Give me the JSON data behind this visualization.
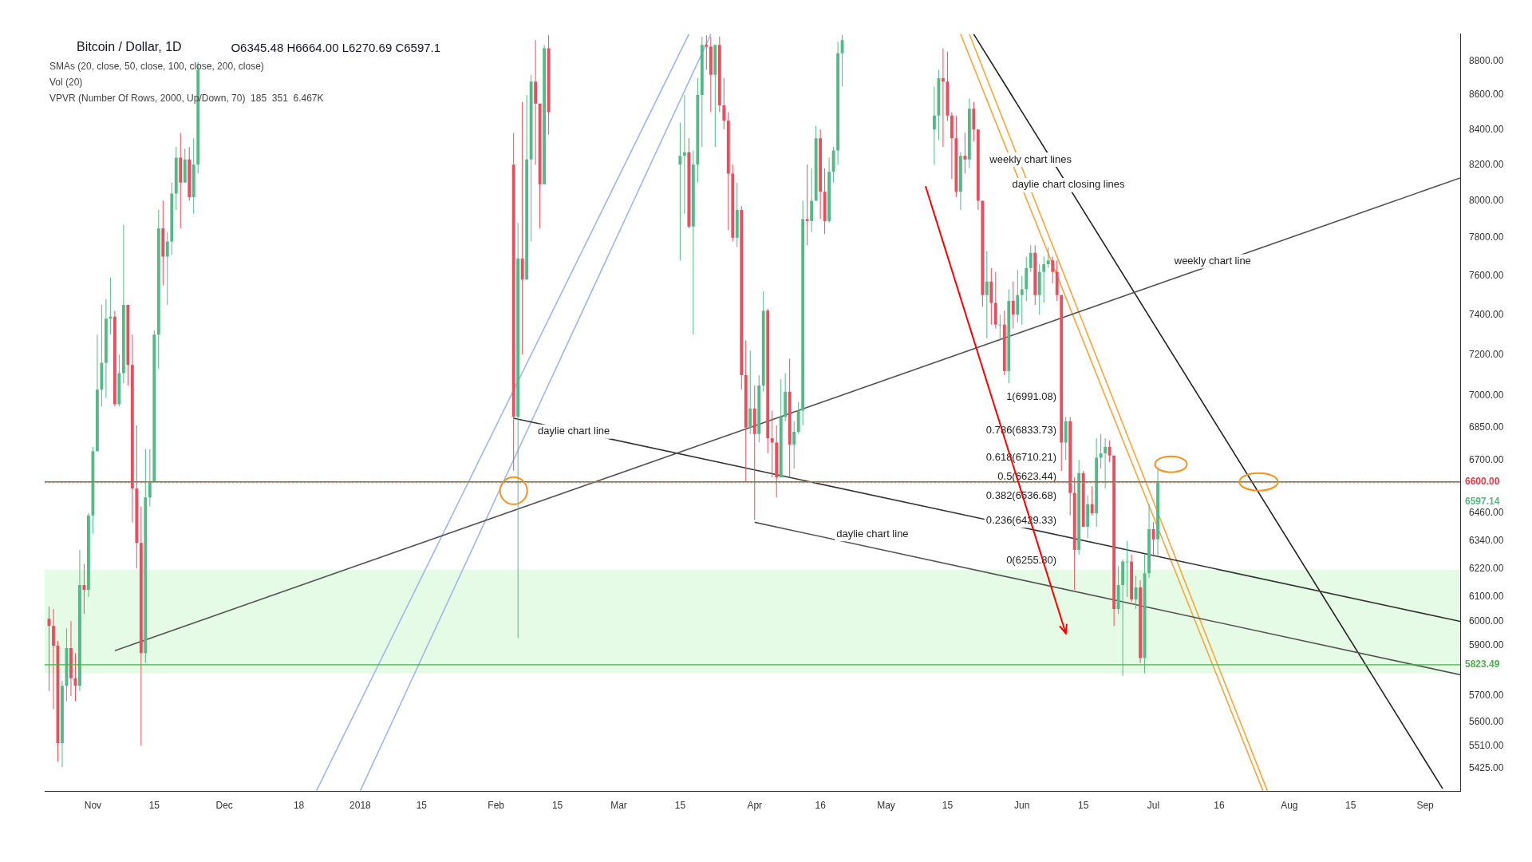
{
  "chart_data": {
    "type": "candlestick",
    "title": "Bitcoin / Dollar, 1D",
    "subtitle": "O6345.48 H6664.00 L6270.69 C6597.1",
    "xlim": [
      "2017-10-21",
      "2018-09-09"
    ],
    "ylim": [
      5340,
      8970
    ],
    "log": true,
    "grid": false,
    "legend": false,
    "xticks": [
      {
        "value": "2017-11-01",
        "label": "Nov"
      },
      {
        "value": "2017-11-15",
        "label": "15"
      },
      {
        "value": "2017-12-01",
        "label": "Dec"
      },
      {
        "value": "2017-12-18",
        "label": "18"
      },
      {
        "value": "2018-01-01",
        "label": "2018"
      },
      {
        "value": "2018-01-15",
        "label": "15"
      },
      {
        "value": "2018-02-01",
        "label": "Feb"
      },
      {
        "value": "2018-02-15",
        "label": "15"
      },
      {
        "value": "2018-03-01",
        "label": "Mar"
      },
      {
        "value": "2018-03-15",
        "label": "15"
      },
      {
        "value": "2018-04-01",
        "label": "Apr"
      },
      {
        "value": "2018-04-16",
        "label": "16"
      },
      {
        "value": "2018-05-01",
        "label": "May"
      },
      {
        "value": "2018-05-15",
        "label": "15"
      },
      {
        "value": "2018-06-01",
        "label": "Jun"
      },
      {
        "value": "2018-06-15",
        "label": "15"
      },
      {
        "value": "2018-07-01",
        "label": "Jul"
      },
      {
        "value": "2018-07-16",
        "label": "16"
      },
      {
        "value": "2018-08-01",
        "label": "Aug"
      },
      {
        "value": "2018-08-15",
        "label": "15"
      },
      {
        "value": "2018-09-01",
        "label": "Sep"
      }
    ],
    "yticks": [
      {
        "value": 5425,
        "label": "5425.00"
      },
      {
        "value": 5510,
        "label": "5510.00"
      },
      {
        "value": 5600,
        "label": "5600.00"
      },
      {
        "value": 5700,
        "label": "5700.00"
      },
      {
        "value": 5900,
        "label": "5900.00"
      },
      {
        "value": 6000,
        "label": "6000.00"
      },
      {
        "value": 6100,
        "label": "6100.00"
      },
      {
        "value": 6220,
        "label": "6220.00"
      },
      {
        "value": 6340,
        "label": "6340.00"
      },
      {
        "value": 6460,
        "label": "6460.00"
      },
      {
        "value": 6700,
        "label": "6700.00"
      },
      {
        "value": 6850,
        "label": "6850.00"
      },
      {
        "value": 7000,
        "label": "7000.00"
      },
      {
        "value": 7200,
        "label": "7200.00"
      },
      {
        "value": 7400,
        "label": "7400.00"
      },
      {
        "value": 7600,
        "label": "7600.00"
      },
      {
        "value": 7800,
        "label": "7800.00"
      },
      {
        "value": 8000,
        "label": "8000.00"
      },
      {
        "value": 8200,
        "label": "8200.00"
      },
      {
        "value": 8400,
        "label": "8400.00"
      },
      {
        "value": 8600,
        "label": "8600.00"
      },
      {
        "value": 8800,
        "label": "8800.00"
      }
    ],
    "series": [
      {
        "x": [
          "2017-10-22",
          "2017-10-23",
          "2017-10-24",
          "2017-10-25",
          "2017-10-26",
          "2017-10-27",
          "2017-10-28",
          "2017-10-29",
          "2017-10-30",
          "2017-10-31",
          "2017-11-01",
          "2017-11-02",
          "2017-11-03",
          "2017-11-04",
          "2017-11-05",
          "2017-11-06",
          "2017-11-07",
          "2017-11-08",
          "2017-11-09",
          "2017-11-10",
          "2017-11-11",
          "2017-11-12",
          "2017-11-13",
          "2017-11-14",
          "2017-11-15",
          "2017-11-16",
          "2017-11-17",
          "2017-11-18",
          "2017-11-19",
          "2017-11-20",
          "2017-11-21",
          "2017-11-22",
          "2017-11-23",
          "2017-11-24",
          "2017-11-25",
          "2018-02-05",
          "2018-02-06",
          "2018-02-07",
          "2018-02-08",
          "2018-02-09",
          "2018-02-10",
          "2018-02-11",
          "2018-02-12",
          "2018-02-13",
          "2018-03-15",
          "2018-03-16",
          "2018-03-17",
          "2018-03-18",
          "2018-03-19",
          "2018-03-20",
          "2018-03-21",
          "2018-03-22",
          "2018-03-23",
          "2018-03-24",
          "2018-03-25",
          "2018-03-26",
          "2018-03-27",
          "2018-03-28",
          "2018-03-29",
          "2018-03-30",
          "2018-03-31",
          "2018-04-01",
          "2018-04-02",
          "2018-04-03",
          "2018-04-04",
          "2018-04-05",
          "2018-04-06",
          "2018-04-07",
          "2018-04-08",
          "2018-04-09",
          "2018-04-10",
          "2018-04-11",
          "2018-04-12",
          "2018-04-13",
          "2018-04-14",
          "2018-04-15",
          "2018-04-16",
          "2018-04-17",
          "2018-04-18",
          "2018-04-19",
          "2018-04-20",
          "2018-04-21",
          "2018-05-12",
          "2018-05-13",
          "2018-05-14",
          "2018-05-15",
          "2018-05-16",
          "2018-05-17",
          "2018-05-18",
          "2018-05-19",
          "2018-05-20",
          "2018-05-21",
          "2018-05-22",
          "2018-05-23",
          "2018-05-24",
          "2018-05-25",
          "2018-05-26",
          "2018-05-27",
          "2018-05-28",
          "2018-05-29",
          "2018-05-30",
          "2018-05-31",
          "2018-06-01",
          "2018-06-02",
          "2018-06-03",
          "2018-06-04",
          "2018-06-05",
          "2018-06-06",
          "2018-06-07",
          "2018-06-08",
          "2018-06-09",
          "2018-06-10",
          "2018-06-11",
          "2018-06-12",
          "2018-06-13",
          "2018-06-14",
          "2018-06-15",
          "2018-06-16",
          "2018-06-17",
          "2018-06-18",
          "2018-06-19",
          "2018-06-20",
          "2018-06-21",
          "2018-06-22",
          "2018-06-23",
          "2018-06-24",
          "2018-06-25",
          "2018-06-26",
          "2018-06-27",
          "2018-06-28",
          "2018-06-29",
          "2018-06-30",
          "2018-07-01",
          "2018-07-02"
        ],
        "ohlc": [
          [
            6010,
            6060,
            5720,
            5980
          ],
          [
            5980,
            6050,
            5650,
            5900
          ],
          [
            5900,
            5920,
            5450,
            5520
          ],
          [
            5520,
            5760,
            5430,
            5740
          ],
          [
            5740,
            5970,
            5680,
            5890
          ],
          [
            5890,
            6000,
            5700,
            5770
          ],
          [
            5770,
            5870,
            5680,
            5740
          ],
          [
            5740,
            6300,
            5720,
            6150
          ],
          [
            6150,
            6240,
            6030,
            6130
          ],
          [
            6130,
            6460,
            6100,
            6450
          ],
          [
            6450,
            6760,
            6370,
            6740
          ],
          [
            6740,
            7300,
            6740,
            7030
          ],
          [
            7030,
            7450,
            6950,
            7160
          ],
          [
            7160,
            7480,
            6990,
            7380
          ],
          [
            7380,
            7590,
            7300,
            7390
          ],
          [
            7390,
            7420,
            6950,
            6960
          ],
          [
            6960,
            7200,
            6950,
            7110
          ],
          [
            7110,
            7870,
            7060,
            7450
          ],
          [
            7450,
            7450,
            7050,
            7150
          ],
          [
            7150,
            7300,
            6420,
            6570
          ],
          [
            6570,
            6860,
            6220,
            6330
          ],
          [
            6330,
            6490,
            5510,
            5870
          ],
          [
            5870,
            6750,
            5830,
            6530
          ],
          [
            6530,
            6750,
            6490,
            6600
          ],
          [
            6600,
            7320,
            6600,
            7300
          ],
          [
            7300,
            7950,
            7130,
            7850
          ],
          [
            7850,
            8000,
            7550,
            7700
          ],
          [
            7700,
            7830,
            7450,
            7780
          ],
          [
            7780,
            8100,
            7710,
            8040
          ],
          [
            8040,
            8300,
            7950,
            8240
          ],
          [
            8240,
            8380,
            7850,
            8100
          ],
          [
            8100,
            8290,
            8100,
            8230
          ],
          [
            8230,
            8300,
            8000,
            8020
          ],
          [
            8020,
            8350,
            7930,
            8200
          ],
          [
            8200,
            8800,
            8150,
            8750
          ],
          [
            8200,
            8380,
            6650,
            6900
          ],
          [
            6900,
            7880,
            5930,
            7690
          ],
          [
            7690,
            8560,
            7200,
            7580
          ],
          [
            7580,
            8600,
            7580,
            8230
          ],
          [
            8230,
            8720,
            7780,
            8680
          ],
          [
            8680,
            8930,
            8200,
            8550
          ],
          [
            8550,
            8550,
            7850,
            8090
          ],
          [
            8090,
            8900,
            8090,
            8880
          ],
          [
            8880,
            8960,
            8370,
            8500
          ],
          [
            8200,
            8440,
            7680,
            8250
          ],
          [
            8250,
            8600,
            7930,
            8270
          ],
          [
            8270,
            8350,
            7850,
            7860
          ],
          [
            7860,
            8280,
            7300,
            8200
          ],
          [
            8200,
            8700,
            8100,
            8600
          ],
          [
            8600,
            8950,
            8300,
            8900
          ],
          [
            8900,
            8960,
            8750,
            8890
          ],
          [
            8890,
            8950,
            8500,
            8720
          ],
          [
            8720,
            8900,
            8300,
            8900
          ],
          [
            8900,
            8950,
            8500,
            8540
          ],
          [
            8540,
            8700,
            8400,
            8450
          ],
          [
            8450,
            8500,
            7840,
            8150
          ],
          [
            8150,
            8200,
            7780,
            7800
          ],
          [
            7800,
            8100,
            7750,
            7950
          ],
          [
            7950,
            7970,
            7030,
            7100
          ],
          [
            7100,
            7270,
            6600,
            6850
          ],
          [
            6850,
            7220,
            6820,
            6940
          ],
          [
            6940,
            7050,
            6430,
            6820
          ],
          [
            6820,
            7100,
            6780,
            7050
          ],
          [
            7050,
            7520,
            7020,
            7420
          ],
          [
            7420,
            7430,
            6730,
            6800
          ],
          [
            6800,
            6930,
            6620,
            6780
          ],
          [
            6780,
            6860,
            6530,
            6620
          ],
          [
            6620,
            7080,
            6620,
            6900
          ],
          [
            6900,
            7110,
            6880,
            7020
          ],
          [
            7020,
            7180,
            6620,
            6770
          ],
          [
            6770,
            6880,
            6660,
            6830
          ],
          [
            6830,
            6970,
            6820,
            6930
          ],
          [
            6930,
            8000,
            6860,
            7900
          ],
          [
            7900,
            8200,
            7760,
            7890
          ],
          [
            7890,
            8180,
            7830,
            8000
          ],
          [
            8000,
            8420,
            8000,
            8350
          ],
          [
            8350,
            8400,
            7900,
            8050
          ],
          [
            8050,
            8180,
            7820,
            7890
          ],
          [
            7890,
            8240,
            7880,
            8160
          ],
          [
            8160,
            8300,
            8100,
            8280
          ],
          [
            8280,
            8920,
            8200,
            8850
          ],
          [
            8850,
            8960,
            8650,
            8930
          ],
          [
            8400,
            8650,
            8200,
            8480
          ],
          [
            8480,
            8750,
            8340,
            8700
          ],
          [
            8700,
            8880,
            8300,
            8680
          ],
          [
            8680,
            8860,
            8450,
            8480
          ],
          [
            8480,
            8500,
            8120,
            8350
          ],
          [
            8350,
            8480,
            8020,
            8050
          ],
          [
            8050,
            8270,
            7950,
            8250
          ],
          [
            8250,
            8380,
            8150,
            8230
          ],
          [
            8230,
            8580,
            8180,
            8520
          ],
          [
            8520,
            8560,
            8330,
            8400
          ],
          [
            8400,
            8400,
            7950,
            8000
          ],
          [
            8000,
            8000,
            7440,
            7500
          ],
          [
            7500,
            7730,
            7280,
            7570
          ],
          [
            7570,
            7640,
            7350,
            7460
          ],
          [
            7460,
            7620,
            7330,
            7350
          ],
          [
            7350,
            7400,
            7270,
            7350
          ],
          [
            7350,
            7420,
            7100,
            7120
          ],
          [
            7120,
            7530,
            7060,
            7470
          ],
          [
            7470,
            7570,
            7330,
            7400
          ],
          [
            7400,
            7630,
            7360,
            7500
          ],
          [
            7500,
            7600,
            7350,
            7530
          ],
          [
            7530,
            7700,
            7470,
            7640
          ],
          [
            7640,
            7760,
            7620,
            7720
          ],
          [
            7720,
            7760,
            7450,
            7500
          ],
          [
            7500,
            7660,
            7400,
            7620
          ],
          [
            7620,
            7700,
            7460,
            7660
          ],
          [
            7660,
            7750,
            7640,
            7680
          ],
          [
            7680,
            7700,
            7560,
            7620
          ],
          [
            7620,
            7680,
            7470,
            7500
          ],
          [
            7500,
            7500,
            6650,
            6780
          ],
          [
            6780,
            6900,
            6700,
            6880
          ],
          [
            6880,
            6900,
            6450,
            6550
          ],
          [
            6550,
            6620,
            6130,
            6300
          ],
          [
            6300,
            6700,
            6280,
            6640
          ],
          [
            6640,
            6650,
            6400,
            6400
          ],
          [
            6400,
            6540,
            6350,
            6500
          ],
          [
            6500,
            6580,
            6450,
            6460
          ],
          [
            6460,
            6800,
            6400,
            6710
          ],
          [
            6710,
            6820,
            6660,
            6730
          ],
          [
            6730,
            6800,
            6570,
            6760
          ],
          [
            6760,
            6790,
            6690,
            6720
          ],
          [
            6720,
            6720,
            5980,
            6050
          ],
          [
            6050,
            6230,
            6030,
            6150
          ],
          [
            6150,
            6260,
            5780,
            6250
          ],
          [
            6250,
            6340,
            6100,
            6250
          ],
          [
            6250,
            6280,
            6080,
            6090
          ],
          [
            6090,
            6190,
            6050,
            6140
          ],
          [
            6140,
            6170,
            5830,
            5850
          ],
          [
            5850,
            6280,
            5790,
            6200
          ],
          [
            6200,
            6500,
            6180,
            6390
          ],
          [
            6390,
            6420,
            6270,
            6345
          ],
          [
            6345.48,
            6664,
            6270.69,
            6597.14
          ]
        ],
        "colors": [
          "#eb4d5c",
          "#eb4d5c",
          "#eb4d5c",
          "#53b987",
          "#53b987",
          "#eb4d5c",
          "#eb4d5c",
          "#53b987",
          "#eb4d5c",
          "#53b987",
          "#53b987",
          "#53b987",
          "#53b987",
          "#53b987",
          "#53b987",
          "#eb4d5c",
          "#53b987",
          "#53b987",
          "#eb4d5c",
          "#eb4d5c",
          "#eb4d5c",
          "#eb4d5c",
          "#53b987",
          "#53b987",
          "#53b987",
          "#53b987",
          "#eb4d5c",
          "#53b987",
          "#53b987",
          "#53b987",
          "#eb4d5c",
          "#53b987",
          "#eb4d5c",
          "#53b987",
          "#53b987",
          "#eb4d5c",
          "#53b987",
          "#eb4d5c",
          "#53b987",
          "#53b987",
          "#eb4d5c",
          "#eb4d5c",
          "#53b987",
          "#eb4d5c",
          "#53b987",
          "#53b987",
          "#eb4d5c",
          "#53b987",
          "#53b987",
          "#53b987",
          "#eb4d5c",
          "#eb4d5c",
          "#53b987",
          "#eb4d5c",
          "#eb4d5c",
          "#eb4d5c",
          "#eb4d5c",
          "#53b987",
          "#eb4d5c",
          "#eb4d5c",
          "#53b987",
          "#eb4d5c",
          "#53b987",
          "#53b987",
          "#eb4d5c",
          "#eb4d5c",
          "#eb4d5c",
          "#53b987",
          "#53b987",
          "#eb4d5c",
          "#53b987",
          "#53b987",
          "#53b987",
          "#eb4d5c",
          "#53b987",
          "#53b987",
          "#eb4d5c",
          "#eb4d5c",
          "#53b987",
          "#53b987",
          "#53b987",
          "#53b987",
          "#53b987",
          "#53b987",
          "#eb4d5c",
          "#eb4d5c",
          "#eb4d5c",
          "#eb4d5c",
          "#53b987",
          "#eb4d5c",
          "#53b987",
          "#eb4d5c",
          "#eb4d5c",
          "#eb4d5c",
          "#53b987",
          "#eb4d5c",
          "#eb4d5c",
          "#53b987",
          "#eb4d5c",
          "#53b987",
          "#eb4d5c",
          "#53b987",
          "#53b987",
          "#53b987",
          "#53b987",
          "#eb4d5c",
          "#53b987",
          "#53b987",
          "#53b987",
          "#eb4d5c",
          "#eb4d5c",
          "#eb4d5c",
          "#53b987",
          "#eb4d5c",
          "#eb4d5c",
          "#53b987",
          "#eb4d5c",
          "#53b987",
          "#eb4d5c",
          "#53b987",
          "#53b987",
          "#53b987",
          "#eb4d5c",
          "#eb4d5c",
          "#53b987",
          "#53b987",
          "#53b987",
          "#eb4d5c",
          "#53b987",
          "#eb4d5c",
          "#53b987",
          "#53b987",
          "#eb4d5c",
          "#53b987"
        ]
      },
      {
        "type": "line",
        "color": "#555555",
        "x": [
          "2017-11-06",
          "2018-09-09"
        ],
        "values": [
          5880,
          8126
        ]
      },
      {
        "type": "line",
        "color": "#333333",
        "x": [
          "2018-02-05",
          "2018-09-09"
        ],
        "values": [
          6894,
          5999
        ]
      },
      {
        "type": "line",
        "color": "#555555",
        "x": [
          "2018-04-01",
          "2018-09-09"
        ],
        "values": [
          6420,
          5784
        ]
      },
      {
        "type": "line",
        "color": "#222222",
        "x": [
          "2018-05-21",
          "2018-09-05"
        ],
        "values": [
          8966,
          5350
        ]
      },
      {
        "type": "line",
        "color": "#9db8e8",
        "x": [
          "2017-12-22",
          "2018-03-17"
        ],
        "values": [
          5342,
          8966
        ]
      },
      {
        "type": "line",
        "color": "#9db8e8",
        "x": [
          "2018-01-01",
          "2018-03-22"
        ],
        "values": [
          5342,
          8966
        ]
      },
      {
        "type": "line",
        "color": "#f7a738",
        "x": [
          "2018-05-18",
          "2018-07-26"
        ],
        "values": [
          8966,
          5342
        ]
      },
      {
        "type": "line",
        "color": "#f7a738",
        "x": [
          "2018-05-20",
          "2018-07-27"
        ],
        "values": [
          8966,
          5342
        ]
      }
    ],
    "ref_lines": [
      {
        "axis": "y",
        "value": 6600,
        "label": "6600.00",
        "color": "#f23645"
      },
      {
        "axis": "y",
        "value": 5823.49,
        "label": "5823.49",
        "color": "#4caf50"
      },
      {
        "axis": "y",
        "value": 6597.14,
        "label": "6597.14",
        "color": "#53b987",
        "line_style": "dotted"
      }
    ],
    "bands": [
      {
        "axis": "y",
        "from": 5790,
        "to": 6215,
        "color": "#e6fbe6"
      }
    ],
    "annotations": [
      "SMAs (20, close, 50, close, 100, close, 200, close)",
      "Vol (20)",
      "VPVR (Number Of Rows, 2000, Up/Down, 70)  185  351  6.467K",
      "weekly chart lines",
      "daylie chart closing lines",
      "weekly chart line",
      "daylie chart line",
      "daylie chart line",
      "1(6991.08)",
      "0.786(6833.73)",
      "0.618(6710.21)",
      "0.5(6623.44)",
      "0.382(6536.68)",
      "0.236(6429.33)",
      "0(6255.80)"
    ]
  }
}
